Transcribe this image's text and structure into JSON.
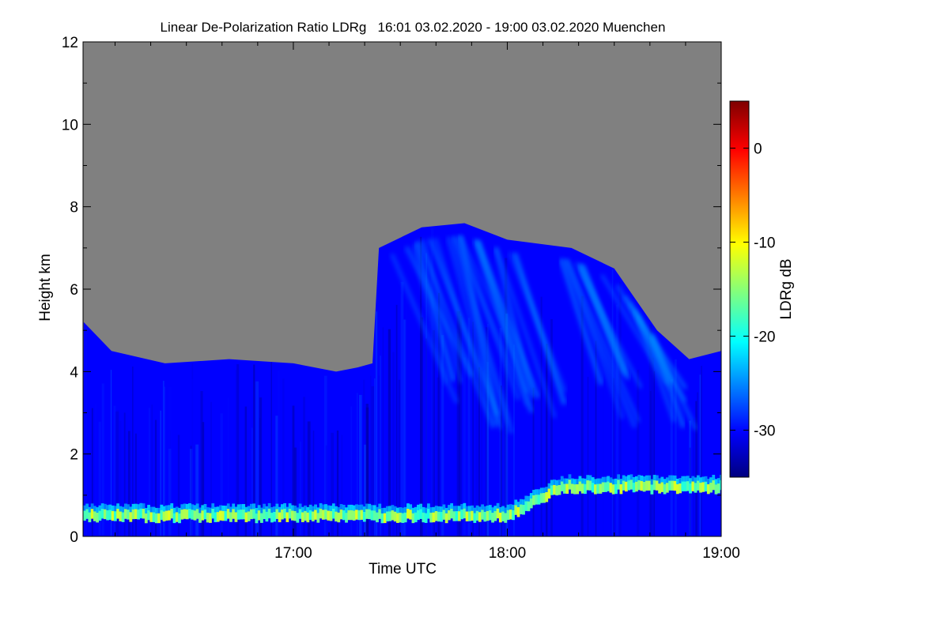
{
  "chart_data": {
    "type": "heatmap",
    "title": "Linear De-Polarization Ratio LDRg   16:01 03.02.2020 - 19:00 03.02.2020 Muenchen",
    "xlabel": "Time UTC",
    "ylabel": "Height km",
    "x_tick_labels": [
      "17:00",
      "18:00",
      "19:00"
    ],
    "x_range_hours": [
      16.017,
      19.0
    ],
    "y_range_km": [
      0,
      12
    ],
    "y_ticks": [
      0,
      2,
      4,
      6,
      8,
      10,
      12
    ],
    "colorbar": {
      "label": "LDRg dB",
      "range_db": [
        -35,
        5
      ],
      "ticks": [
        0,
        -10,
        -20,
        -30
      ],
      "colormap": "jet"
    },
    "no_data_color": "#808080",
    "features": {
      "boundary_layer_aerosol": {
        "height_km_start": 0.5,
        "height_km_after_18_15": 1.2,
        "ldr_db": -15
      },
      "background_ice_cloud_ldr_db": -30,
      "signal_top_km": [
        [
          16.02,
          5.2
        ],
        [
          16.15,
          4.5
        ],
        [
          16.4,
          4.2
        ],
        [
          16.7,
          4.3
        ],
        [
          17.0,
          4.2
        ],
        [
          17.2,
          4.0
        ],
        [
          17.3,
          4.1
        ],
        [
          17.37,
          4.2
        ],
        [
          17.4,
          7.0
        ],
        [
          17.6,
          7.5
        ],
        [
          17.8,
          7.6
        ],
        [
          18.0,
          7.2
        ],
        [
          18.3,
          7.0
        ],
        [
          18.5,
          6.5
        ],
        [
          18.7,
          5.0
        ],
        [
          18.85,
          4.3
        ],
        [
          19.0,
          4.5
        ]
      ]
    }
  }
}
